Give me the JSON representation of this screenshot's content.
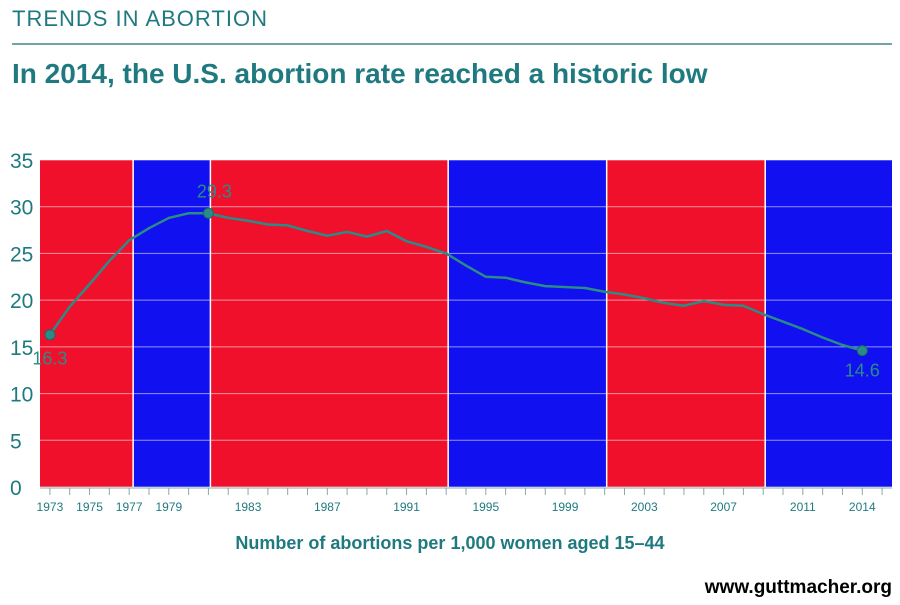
{
  "header": {
    "kicker": "TRENDS IN ABORTION",
    "headline": "In 2014, the U.S. abortion rate reached a historic low"
  },
  "footer": {
    "source": "www.guttmacher.org"
  },
  "colors": {
    "accent": "#1f7a80",
    "line": "#2a8c86",
    "red_band": "#f0102c",
    "blue_band": "#1010f0"
  },
  "chart_data": {
    "type": "line",
    "title": "",
    "xlabel": "Number of abortions per 1,000 women aged 15–44",
    "ylabel": "",
    "ylim": [
      0,
      35
    ],
    "xlim": [
      1972.5,
      2015.5
    ],
    "y_ticks": [
      "0",
      "5",
      "10",
      "15",
      "20",
      "25",
      "30",
      "35"
    ],
    "x_ticks": [
      "1973",
      "1975",
      "1977",
      "1979",
      "1983",
      "1987",
      "1991",
      "1995",
      "1999",
      "2003",
      "2007",
      "2011",
      "2014"
    ],
    "grid": true,
    "background_bands": [
      {
        "start": 1972.5,
        "end": 1977.2,
        "color": "red"
      },
      {
        "start": 1977.2,
        "end": 1981.1,
        "color": "blue"
      },
      {
        "start": 1981.1,
        "end": 1993.1,
        "color": "red"
      },
      {
        "start": 1993.1,
        "end": 2001.1,
        "color": "blue"
      },
      {
        "start": 2001.1,
        "end": 2009.1,
        "color": "red"
      },
      {
        "start": 2009.1,
        "end": 2015.5,
        "color": "blue"
      }
    ],
    "series": [
      {
        "x": [
          1973,
          1974,
          1975,
          1976,
          1977,
          1978,
          1979,
          1980,
          1981,
          1982,
          1983,
          1984,
          1985,
          1986,
          1987,
          1988,
          1989,
          1990,
          1991,
          1992,
          1993,
          1994,
          1995,
          1996,
          1997,
          1998,
          1999,
          2000,
          2001,
          2002,
          2003,
          2004,
          2005,
          2006,
          2007,
          2008,
          2009,
          2010,
          2011,
          2012,
          2013,
          2014
        ],
        "values": [
          16.3,
          19.3,
          21.7,
          24.2,
          26.4,
          27.7,
          28.8,
          29.3,
          29.3,
          28.8,
          28.5,
          28.1,
          28.0,
          27.4,
          26.9,
          27.3,
          26.8,
          27.4,
          26.3,
          25.7,
          25.0,
          23.7,
          22.5,
          22.4,
          21.9,
          21.5,
          21.4,
          21.3,
          20.9,
          20.6,
          20.2,
          19.7,
          19.4,
          19.9,
          19.5,
          19.4,
          18.5,
          17.7,
          16.9,
          16.0,
          15.2,
          14.6
        ]
      }
    ],
    "annotations": [
      {
        "x": 1973,
        "y": 16.3,
        "text": "16.3"
      },
      {
        "x": 1981,
        "y": 29.3,
        "text": "29.3"
      },
      {
        "x": 2014,
        "y": 14.6,
        "text": "14.6"
      }
    ]
  }
}
